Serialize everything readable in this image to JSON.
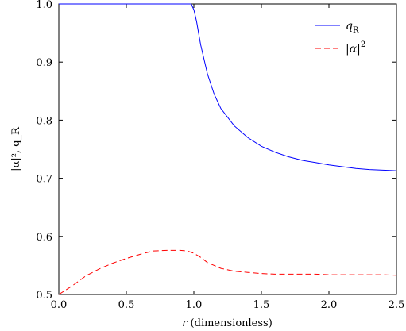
{
  "chart_data": {
    "type": "line",
    "xlabel_var": "r",
    "xlabel_rest": " (dimensionless)",
    "ylabel": "|α|², q_R",
    "xlim": [
      0.0,
      2.5
    ],
    "ylim": [
      0.5,
      1.0
    ],
    "xticks": [
      0.0,
      0.5,
      1.0,
      1.5,
      2.0,
      2.5
    ],
    "xtick_labels": [
      "0.0",
      "0.5",
      "1.0",
      "1.5",
      "2.0",
      "2.5"
    ],
    "yticks": [
      0.5,
      0.6,
      0.7,
      0.8,
      0.9,
      1.0
    ],
    "ytick_labels": [
      "0.5",
      "0.6",
      "0.7",
      "0.8",
      "0.9",
      "1.0"
    ],
    "grid": false,
    "legend_position": "top-right",
    "series": [
      {
        "name": "q_R",
        "legend_main": "q",
        "legend_sub": "R",
        "color": "#0000ff",
        "style": "solid",
        "x": [
          0.0,
          0.2,
          0.4,
          0.6,
          0.8,
          0.9,
          0.98,
          1.0,
          1.02,
          1.05,
          1.1,
          1.15,
          1.2,
          1.3,
          1.4,
          1.5,
          1.6,
          1.7,
          1.8,
          1.9,
          2.0,
          2.1,
          2.2,
          2.3,
          2.4,
          2.5
        ],
        "y": [
          1.0,
          1.0,
          1.0,
          1.0,
          1.0,
          1.0,
          1.0,
          0.99,
          0.97,
          0.93,
          0.88,
          0.845,
          0.82,
          0.79,
          0.77,
          0.755,
          0.745,
          0.737,
          0.731,
          0.727,
          0.723,
          0.72,
          0.717,
          0.715,
          0.714,
          0.713
        ]
      },
      {
        "name": "|α|²",
        "legend_main": "|α|",
        "legend_sup": "2",
        "color": "#ff0000",
        "style": "dashed",
        "x": [
          0.0,
          0.1,
          0.2,
          0.3,
          0.4,
          0.5,
          0.6,
          0.7,
          0.8,
          0.9,
          0.95,
          1.0,
          1.05,
          1.1,
          1.2,
          1.3,
          1.4,
          1.5,
          1.6,
          1.7,
          1.8,
          1.9,
          2.0,
          2.1,
          2.2,
          2.3,
          2.4,
          2.5
        ],
        "y": [
          0.5,
          0.515,
          0.532,
          0.544,
          0.554,
          0.562,
          0.569,
          0.575,
          0.576,
          0.576,
          0.575,
          0.571,
          0.564,
          0.555,
          0.545,
          0.54,
          0.538,
          0.536,
          0.535,
          0.535,
          0.535,
          0.535,
          0.534,
          0.534,
          0.534,
          0.534,
          0.534,
          0.533
        ]
      }
    ]
  }
}
